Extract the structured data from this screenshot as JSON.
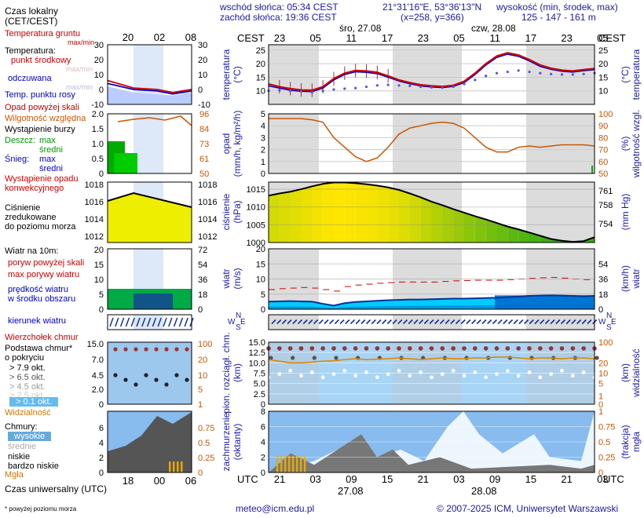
{
  "header": {
    "sunrise": "wschód słońca: 05:34 CEST",
    "sunset": "zachód słońca: 19:36 CEST",
    "coords": "21°31'16\"E, 53°36'13\"N",
    "grid": "(x=258, y=366)",
    "elev_title": "wysokość (min, środek, max)",
    "elev_values": "125 - 147 - 161 m"
  },
  "footer": {
    "email": "meteo@icm.edu.pl",
    "copyright": "© 2007-2025 ICM, Uniwersytet Warszawski",
    "note": "* powyżej poziomu morza"
  },
  "legend": {
    "local_time": "Czas lokalny",
    "local_time_sub": "(CET/CEST)",
    "soil_temp": "Temperatura gruntu",
    "soil_sub": "max/min",
    "temperature": "Temperatura:",
    "mid": "punkt środkowy",
    "maxmin": "max/min",
    "perceived": "odczuwana",
    "maxmin2": "max/min",
    "dewpoint": "Temp. punktu rosy",
    "rain_over": "Opad powyżej skali",
    "humidity": "Wilgotność względna",
    "storm": "Wystąpienie burzy",
    "rain": "Deszcz:",
    "max": "max",
    "avg": "średni",
    "snow": "Śnieg:",
    "max2": "max",
    "avg2": "średni",
    "rain_occur": "Wystąpienie opadu",
    "convective": "konwekcyjnego",
    "pressure1": "Ciśnienie",
    "pressure2": "zredukowane",
    "pressure3": "do poziomu morza",
    "wind_title": "Wiatr na 10m:",
    "gust_over": "poryw powyżej skali",
    "gust_max": "max porywy wiatru",
    "wind_speed": "prędkość wiatru",
    "wind_area": "w środku obszaru",
    "wind_dir": "kierunek wiatru",
    "cloud_top": "Wierzchołek chmur",
    "cloud_base": "Podstawa chmur*",
    "cloud_base2": "o pokryciu",
    "okt1": "> 7.9 okt.",
    "okt2": "> 6.5 okt.",
    "okt3": "> 4.5 okt.",
    "okt4": "> 2.5 okt.",
    "okt5": "> 0.1 okt.",
    "visibility": "Widzialność",
    "clouds": "Chmury:",
    "high": "wysokie",
    "middle": "średnie",
    "low": "niskie",
    "very_low": "bardzo niskie",
    "fog": "Mgła",
    "utc": "Czas uniwersalny (UTC)"
  },
  "labels": {
    "cest": "CEST",
    "utc": "UTC",
    "day1_top": "śro, 27.08",
    "day2_top": "czw, 28.08",
    "day1_bottom": "27.08",
    "day2_bottom": "28.08",
    "temp_axis": "temperatura",
    "temp_unit": "(°C)",
    "precip_axis": "opad",
    "precip_unit": "(mm/h, kg/m²/h)",
    "hum_axis": "wilgotność wzgl.",
    "hum_unit": "(%)",
    "press_axis": "ciśnienie",
    "press_unit": "(hPa)",
    "press_unit2": "(mm Hg)",
    "wind_axis": "wiatr",
    "wind_unit": "(m/s)",
    "wind_unit2": "(km/h)",
    "cloud_axis": "pion. rozciągł. chm.",
    "cloud_unit": "(km)",
    "vis_axis": "widzialność",
    "vis_unit": "(km)",
    "cov_axis": "zachmurzenie",
    "cov_unit": "(oktanty)",
    "fog_axis": "mgła",
    "fog_unit": "(frakcja)",
    "compass_n": "N",
    "compass_w": "W",
    "compass_s": "S",
    "compass_e": "E"
  },
  "colors": {
    "red": "#cc0000",
    "blue": "#0000cc",
    "orange": "#cc5500",
    "dewpoint": "#5555dd",
    "night": "#dcdcdc",
    "sky": "#a8d4f5",
    "wind_dark": "#003399",
    "wind_mid": "#0066cc",
    "wind_light": "#00ccff"
  },
  "chart_data": {
    "type": "line",
    "local_time_ticks": [
      "23",
      "05",
      "11",
      "17",
      "23",
      "05",
      "11",
      "17",
      "23",
      "05"
    ],
    "utc_time_ticks": [
      "21",
      "03",
      "09",
      "15",
      "21",
      "03",
      "09",
      "15",
      "21",
      "03"
    ],
    "small_local_ticks": [
      "20",
      "02",
      "08"
    ],
    "small_utc_ticks": [
      "18",
      "00",
      "06"
    ],
    "temperature": {
      "ylim": [
        5,
        27
      ],
      "ticks": [
        "10",
        "15",
        "20",
        "25"
      ],
      "series": [
        {
          "name": "punkt środkowy",
          "values": [
            12.5,
            11.5,
            10.8,
            10.3,
            10.2,
            11.5,
            14.5,
            16.5,
            17.5,
            17.3,
            16.8,
            15.5,
            14.0,
            13.0,
            12.2,
            11.8,
            11.6,
            12.0,
            13.5,
            16.5,
            20.0,
            22.8,
            24.0,
            23.2,
            21.5,
            19.5,
            18.3,
            17.6,
            17.3,
            17.8,
            18.2
          ]
        },
        {
          "name": "odczuwana",
          "values": [
            11.8,
            11.0,
            10.2,
            9.8,
            9.7,
            11.0,
            14.0,
            16.0,
            17.0,
            16.8,
            16.3,
            15.0,
            13.6,
            12.6,
            11.8,
            11.4,
            11.2,
            11.6,
            13.0,
            16.0,
            19.5,
            22.3,
            23.5,
            22.7,
            21.0,
            19.0,
            17.9,
            17.2,
            16.9,
            17.4,
            17.8
          ]
        },
        {
          "name": "Temp. punktu rosy",
          "values": [
            10.0,
            10.2,
            10.0,
            9.8,
            9.5,
            10.0,
            10.5,
            10.8,
            11.0,
            11.5,
            12.0,
            12.2,
            12.0,
            11.8,
            11.5,
            11.3,
            11.2,
            11.5,
            12.5,
            14.0,
            15.5,
            16.5,
            17.0,
            17.5,
            17.0,
            16.5,
            16.2,
            16.0,
            16.0,
            16.2,
            16.5
          ]
        }
      ],
      "small_ticks": [
        "-10",
        "0",
        "10",
        "20",
        "30"
      ]
    },
    "humidity": {
      "ylim": [
        50,
        100
      ],
      "ticks": [
        "50",
        "60",
        "70",
        "80",
        "90",
        "100"
      ],
      "values": [
        96,
        96,
        96,
        96,
        95,
        93,
        80,
        72,
        64,
        60,
        63,
        72,
        83,
        88,
        90,
        92,
        93,
        92,
        88,
        80,
        72,
        68,
        68,
        72,
        73,
        72,
        73,
        74,
        74,
        74,
        73
      ]
    },
    "precip": {
      "ylim": [
        0,
        5
      ],
      "ticks": [
        "0",
        "1",
        "2",
        "3",
        "4",
        "5"
      ],
      "small_ticks": [
        "0",
        "0.5",
        "1.0",
        "1.5",
        "2.0"
      ],
      "small_hum_ticks": [
        "50",
        "61",
        "73",
        "84",
        "96"
      ]
    },
    "pressure": {
      "ylim": [
        1000,
        1017
      ],
      "ticks": [
        "1000",
        "1005",
        "1010",
        "1015"
      ],
      "mmhg_ticks": [
        "754",
        "758",
        "761"
      ],
      "small_ticks": [
        "1012",
        "1014",
        "1016",
        "1018"
      ],
      "values": [
        1013.2,
        1013.8,
        1014.3,
        1015.0,
        1015.8,
        1016.5,
        1016.9,
        1016.9,
        1016.7,
        1016.4,
        1016.0,
        1015.5,
        1014.8,
        1013.8,
        1012.7,
        1011.5,
        1010.5,
        1009.4,
        1008.4,
        1007.4,
        1006.5,
        1005.5,
        1004.5,
        1003.7,
        1002.8,
        1001.9,
        1001.0,
        1000.5,
        1000.2,
        1000.4,
        1001.5
      ]
    },
    "wind": {
      "ylim": [
        0,
        20
      ],
      "ticks": [
        "0",
        "5",
        "10",
        "15",
        "20"
      ],
      "kmh_ticks": [
        "0",
        "18",
        "36",
        "54"
      ],
      "small_ticks": [
        "0",
        "5",
        "10",
        "15",
        "20"
      ],
      "small_kmh_ticks": [
        "0",
        "18",
        "36",
        "54",
        "72"
      ],
      "speed": [
        2.5,
        2.6,
        2.7,
        2.6,
        2.5,
        1.8,
        1.2,
        2.0,
        2.4,
        2.6,
        2.8,
        3.0,
        3.1,
        3.2,
        3.2,
        3.3,
        3.4,
        3.5,
        3.5,
        3.6,
        3.7,
        3.8,
        4.0,
        4.2,
        4.4,
        4.5,
        4.6,
        4.5,
        4.4,
        4.3,
        4.4
      ],
      "gust": [
        6.5,
        6.8,
        7.0,
        7.2,
        7.0,
        6.5,
        6.0,
        7.5,
        8.0,
        8.3,
        8.6,
        8.8,
        9.0,
        9.0,
        9.0,
        9.0,
        9.2,
        9.4,
        9.5,
        9.6,
        9.6,
        9.6,
        9.8,
        10.0,
        10.2,
        10.4,
        10.5,
        10.3,
        10.0,
        9.8,
        9.8
      ]
    },
    "cloud": {
      "ylim": [
        0,
        15
      ],
      "ticks": [
        "0",
        "2.5",
        "5.0",
        "7.5",
        "10.0",
        "12.5",
        "15.0"
      ],
      "vis_ticks": [
        "0",
        "1",
        "5",
        "10",
        "20",
        "100"
      ],
      "small_ticks": [
        "0",
        "2.0",
        "4.5",
        "7.0",
        "15.0"
      ],
      "small_vis_ticks": [
        "1",
        "5",
        "10",
        "20",
        "100"
      ],
      "visibility": [
        10.8,
        10.4,
        10.0,
        10.0,
        10.2,
        10.4,
        10.5,
        10.8,
        11.0,
        10.8,
        10.9,
        11.0,
        11.2,
        11.0,
        10.8,
        11.0,
        11.2,
        11.0,
        11.0,
        11.2,
        11.2,
        11.4,
        11.4,
        11.2,
        11.0,
        11.2,
        11.2,
        11.0,
        11.2,
        11.2,
        11.0
      ]
    },
    "coverage": {
      "ylim": [
        0,
        8
      ],
      "ticks": [
        "0",
        "2",
        "4",
        "6",
        "8"
      ],
      "fog_ticks": [
        "0",
        "0.25",
        "0.5",
        "0.75",
        "1"
      ],
      "small_ticks": [
        "0",
        "2",
        "4",
        "6"
      ],
      "small_fog_ticks": [
        "0",
        "0.25",
        "0.5",
        "0.75"
      ]
    }
  }
}
